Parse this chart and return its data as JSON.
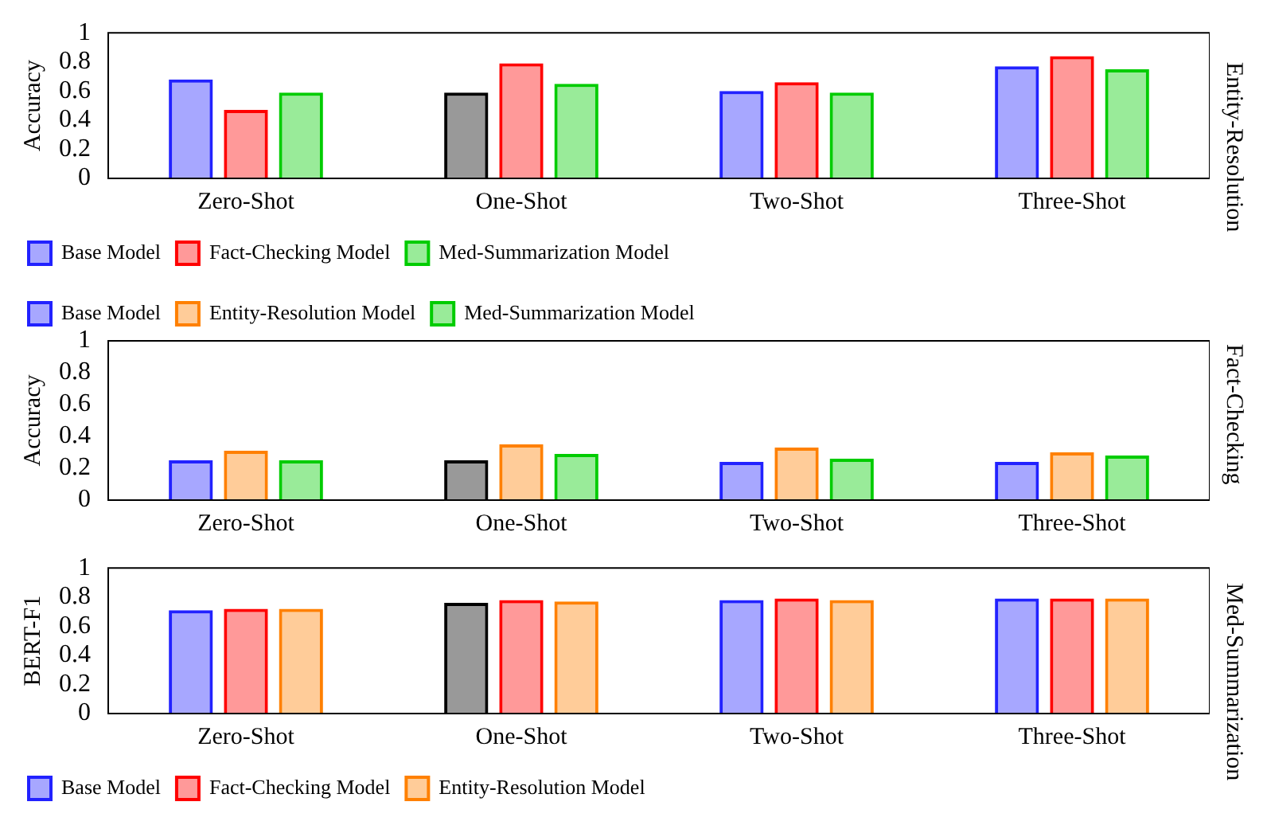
{
  "chart_data": [
    {
      "type": "bar",
      "title": "Entity-Resolution",
      "ylabel": "Accuracy",
      "categories": [
        "Zero-Shot",
        "One-Shot",
        "Two-Shot",
        "Three-Shot"
      ],
      "ylim": [
        0,
        1
      ],
      "yticks": [
        0,
        0.2,
        0.4,
        0.6,
        0.8,
        1
      ],
      "grid": false,
      "legend": "bottom left",
      "series": [
        {
          "name": "Base Model",
          "color": "#2222ff",
          "colors": [
            "#2222ff",
            "#000000",
            "#2222ff",
            "#2222ff"
          ],
          "values": [
            0.68,
            0.59,
            0.6,
            0.77
          ]
        },
        {
          "name": "Fact-Checking Model",
          "color": "#ff0000",
          "values": [
            0.47,
            0.79,
            0.66,
            0.84
          ]
        },
        {
          "name": "Med-Summarization Model",
          "color": "#00cc00",
          "values": [
            0.59,
            0.65,
            0.59,
            0.75
          ]
        }
      ]
    },
    {
      "type": "bar",
      "title": "Fact-Checking",
      "ylabel": "Accuracy",
      "categories": [
        "Zero-Shot",
        "One-Shot",
        "Two-Shot",
        "Three-Shot"
      ],
      "ylim": [
        0,
        1
      ],
      "yticks": [
        0,
        0.2,
        0.4,
        0.6,
        0.8,
        1
      ],
      "grid": false,
      "legend": "top left",
      "series": [
        {
          "name": "Base Model",
          "color": "#2222ff",
          "colors": [
            "#2222ff",
            "#000000",
            "#2222ff",
            "#2222ff"
          ],
          "values": [
            0.25,
            0.25,
            0.24,
            0.24
          ]
        },
        {
          "name": "Entity-Resolution Model",
          "color": "#ff8000",
          "values": [
            0.31,
            0.35,
            0.33,
            0.3
          ]
        },
        {
          "name": "Med-Summarization Model",
          "color": "#00cc00",
          "values": [
            0.25,
            0.29,
            0.26,
            0.28
          ]
        }
      ]
    },
    {
      "type": "bar",
      "title": "Med-Summarization",
      "ylabel": "BERT-F1",
      "categories": [
        "Zero-Shot",
        "One-Shot",
        "Two-Shot",
        "Three-Shot"
      ],
      "ylim": [
        0,
        1
      ],
      "yticks": [
        0,
        0.2,
        0.4,
        0.6,
        0.8,
        1
      ],
      "grid": false,
      "legend": "bottom left",
      "series": [
        {
          "name": "Base Model",
          "color": "#2222ff",
          "colors": [
            "#2222ff",
            "#000000",
            "#2222ff",
            "#2222ff"
          ],
          "values": [
            0.71,
            0.76,
            0.78,
            0.79
          ]
        },
        {
          "name": "Fact-Checking Model",
          "color": "#ff0000",
          "values": [
            0.72,
            0.78,
            0.79,
            0.79
          ]
        },
        {
          "name": "Entity-Resolution Model",
          "color": "#ff8000",
          "values": [
            0.72,
            0.77,
            0.78,
            0.79
          ]
        }
      ]
    }
  ]
}
